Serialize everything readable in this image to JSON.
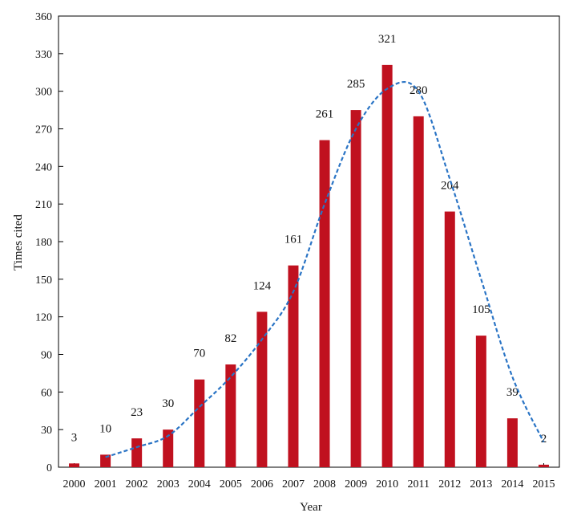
{
  "chart_data": {
    "type": "bar",
    "title": "",
    "xlabel": "Year",
    "ylabel": "Times cited",
    "categories": [
      "2000",
      "2001",
      "2002",
      "2003",
      "2004",
      "2005",
      "2006",
      "2007",
      "2008",
      "2009",
      "2010",
      "2011",
      "2012",
      "2013",
      "2014",
      "2015"
    ],
    "values": [
      3,
      10,
      23,
      30,
      70,
      82,
      124,
      161,
      261,
      285,
      321,
      280,
      204,
      105,
      39,
      2
    ],
    "data_labels": [
      "3",
      "10",
      "23",
      "30",
      "70",
      "82",
      "124",
      "161",
      "261",
      "285",
      "321",
      "280",
      "204",
      "105",
      "39",
      "2"
    ],
    "ylim": [
      0,
      360
    ],
    "yticks": [
      0,
      30,
      60,
      90,
      120,
      150,
      180,
      210,
      240,
      270,
      300,
      330,
      360
    ],
    "trend_line": {
      "style": "dashed",
      "x": [
        "2001",
        "2002",
        "2003",
        "2004",
        "2005",
        "2006",
        "2007",
        "2008",
        "2009",
        "2010",
        "2011",
        "2012",
        "2013",
        "2014",
        "2015"
      ],
      "y": [
        8,
        16,
        25,
        48,
        72,
        102,
        140,
        210,
        270,
        302,
        300,
        230,
        150,
        72,
        20
      ]
    },
    "grid": false,
    "legend": "none",
    "colors": {
      "bar": "#c0111f",
      "trend": "#2a74c5",
      "axis": "#000000"
    }
  }
}
